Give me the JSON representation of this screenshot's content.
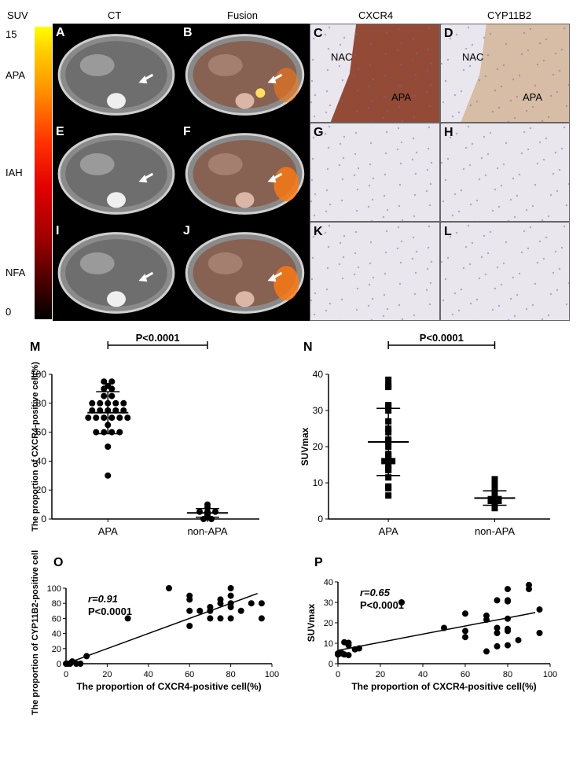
{
  "header": {
    "suv": "SUV",
    "ct": "CT",
    "fusion": "Fusion",
    "cxcr4": "CXCR4",
    "cyp11b2": "CYP11B2"
  },
  "colorbar": {
    "max": "15",
    "min": "0"
  },
  "rows": [
    {
      "label": "APA",
      "panels": [
        "A",
        "B",
        "C",
        "D"
      ]
    },
    {
      "label": "IAH",
      "panels": [
        "E",
        "F",
        "G",
        "H"
      ]
    },
    {
      "label": "NFA",
      "panels": [
        "I",
        "J",
        "K",
        "L"
      ]
    }
  ],
  "ihc_text": {
    "nac": "NAC",
    "apa": "APA"
  },
  "colors": {
    "ihc_apa": "#8a3a22",
    "ihc_cyp": "#c89a6a",
    "marker": "#000000"
  },
  "chart_data": [
    {
      "panel": "M",
      "type": "scatter",
      "categories": [
        "APA",
        "non-APA"
      ],
      "ylabel": "The proportion of CXCR4-positive cell(%)",
      "ylim": [
        0,
        100
      ],
      "yticks": [
        "0",
        "20",
        "40",
        "60",
        "80",
        "100"
      ],
      "significance": "P<0.0001",
      "marker": "circle",
      "series": [
        {
          "values": [
            95,
            95,
            92,
            90,
            90,
            85,
            85,
            80,
            80,
            80,
            80,
            80,
            75,
            75,
            75,
            75,
            75,
            70,
            70,
            70,
            70,
            70,
            70,
            65,
            60,
            60,
            60,
            60,
            50,
            30
          ],
          "mean": 73.5,
          "sd": 14.5
        },
        {
          "values": [
            10,
            8,
            5,
            5,
            5,
            4,
            3,
            2,
            1,
            0,
            0
          ],
          "mean": 4.2,
          "sd": 3
        }
      ]
    },
    {
      "panel": "N",
      "type": "scatter",
      "categories": [
        "APA",
        "non-APA"
      ],
      "ylabel": "SUVmax",
      "ylim": [
        0,
        40
      ],
      "yticks": [
        "0",
        "10",
        "20",
        "30",
        "40"
      ],
      "significance": "P<0.0001",
      "marker": "square",
      "series": [
        {
          "values": [
            38.5,
            37,
            36.5,
            31.5,
            31,
            30,
            27,
            25,
            24,
            22,
            21.5,
            20,
            18,
            17.5,
            16.5,
            16,
            16,
            15,
            14,
            13.5,
            11.5,
            9,
            8.5,
            6.5
          ],
          "mean": 21.3,
          "sd": 9.3
        },
        {
          "values": [
            11,
            9.5,
            8,
            7,
            6.5,
            6,
            5.5,
            5.5,
            5,
            5,
            4.5,
            4,
            3
          ],
          "mean": 5.8,
          "sd": 2
        }
      ]
    },
    {
      "panel": "O",
      "type": "scatter",
      "xlabel": "The proportion of CXCR4-positive cell(%)",
      "ylabel": "The proportion of CYP11B2-positive cell(%)",
      "xlim": [
        0,
        100
      ],
      "ylim": [
        0,
        100
      ],
      "xticks": [
        "0",
        "20",
        "40",
        "60",
        "80",
        "100"
      ],
      "yticks": [
        "0",
        "20",
        "40",
        "60",
        "80",
        "100"
      ],
      "r": "r=0.91",
      "p": "P<0.0001",
      "fit": [
        [
          0,
          0
        ],
        [
          93,
          93
        ]
      ],
      "points": [
        [
          0,
          0
        ],
        [
          1,
          0
        ],
        [
          2,
          0
        ],
        [
          3,
          3
        ],
        [
          5,
          0
        ],
        [
          7,
          0
        ],
        [
          10,
          10
        ],
        [
          30,
          60
        ],
        [
          50,
          100
        ],
        [
          60,
          90
        ],
        [
          60,
          85
        ],
        [
          60,
          70
        ],
        [
          60,
          50
        ],
        [
          65,
          70
        ],
        [
          70,
          75
        ],
        [
          70,
          70
        ],
        [
          70,
          60
        ],
        [
          75,
          85
        ],
        [
          75,
          80
        ],
        [
          75,
          60
        ],
        [
          80,
          100
        ],
        [
          80,
          90
        ],
        [
          80,
          80
        ],
        [
          80,
          75
        ],
        [
          80,
          60
        ],
        [
          85,
          70
        ],
        [
          90,
          80
        ],
        [
          95,
          80
        ],
        [
          95,
          60
        ]
      ]
    },
    {
      "panel": "P",
      "type": "scatter",
      "xlabel": "The proportion of CXCR4-positive cell(%)",
      "ylabel": "SUVmax",
      "xlim": [
        0,
        100
      ],
      "ylim": [
        0,
        40
      ],
      "xticks": [
        "0",
        "20",
        "40",
        "60",
        "80",
        "100"
      ],
      "yticks": [
        "0",
        "10",
        "20",
        "30",
        "40"
      ],
      "r": "r=0.65",
      "p": "P<0.0001",
      "fit": [
        [
          0,
          6.5
        ],
        [
          93,
          25
        ]
      ],
      "points": [
        [
          0,
          5
        ],
        [
          0,
          4.5
        ],
        [
          1,
          5.5
        ],
        [
          2,
          5
        ],
        [
          3,
          4.5
        ],
        [
          3,
          10.5
        ],
        [
          5,
          9
        ],
        [
          5,
          10.2
        ],
        [
          5,
          4.2
        ],
        [
          8,
          7
        ],
        [
          10,
          7.5
        ],
        [
          30,
          30
        ],
        [
          50,
          17.5
        ],
        [
          60,
          24.5
        ],
        [
          60,
          16
        ],
        [
          60,
          13
        ],
        [
          70,
          23.5
        ],
        [
          70,
          21.5
        ],
        [
          70,
          6
        ],
        [
          75,
          31
        ],
        [
          75,
          17.5
        ],
        [
          75,
          15
        ],
        [
          75,
          8.5
        ],
        [
          80,
          36.5
        ],
        [
          80,
          31
        ],
        [
          80,
          30.5
        ],
        [
          80,
          22
        ],
        [
          80,
          17
        ],
        [
          80,
          16
        ],
        [
          80,
          9
        ],
        [
          85,
          11.5
        ],
        [
          90,
          38.5
        ],
        [
          90,
          36.5
        ],
        [
          95,
          26.5
        ],
        [
          95,
          15
        ]
      ]
    }
  ]
}
